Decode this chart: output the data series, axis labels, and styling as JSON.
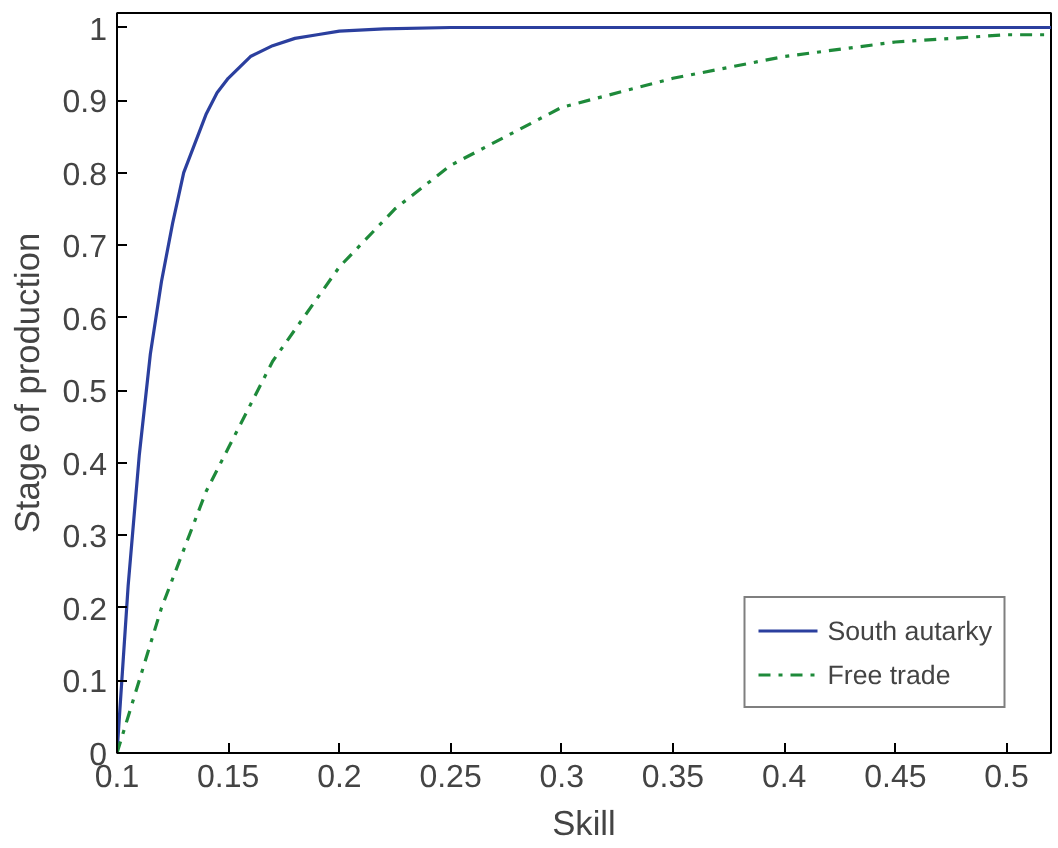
{
  "chart_data": {
    "type": "line",
    "xlabel": "Skill",
    "ylabel": "Stage of production",
    "xlim": [
      0.1,
      0.52
    ],
    "ylim": [
      0,
      1.02
    ],
    "xticks": [
      0.1,
      0.15,
      0.2,
      0.25,
      0.3,
      0.35,
      0.4,
      0.45,
      0.5
    ],
    "yticks": [
      0,
      0.1,
      0.2,
      0.3,
      0.4,
      0.5,
      0.6,
      0.7,
      0.8,
      0.9,
      1
    ],
    "grid": false,
    "legend": "bottom right",
    "series": [
      {
        "name": "South autarky",
        "color": "#2b3f9e",
        "line_style": "solid",
        "x": [
          0.1,
          0.105,
          0.11,
          0.115,
          0.12,
          0.125,
          0.13,
          0.135,
          0.14,
          0.145,
          0.15,
          0.16,
          0.17,
          0.18,
          0.19,
          0.2,
          0.22,
          0.25,
          0.3,
          0.4,
          0.52
        ],
        "values": [
          0,
          0.23,
          0.41,
          0.55,
          0.65,
          0.73,
          0.8,
          0.84,
          0.88,
          0.91,
          0.93,
          0.96,
          0.975,
          0.985,
          0.99,
          0.995,
          0.998,
          1,
          1,
          1,
          1
        ]
      },
      {
        "name": "Free trade",
        "color": "#1e8a3a",
        "line_style": "dashdot",
        "x": [
          0.1,
          0.11,
          0.12,
          0.13,
          0.14,
          0.15,
          0.17,
          0.2,
          0.225,
          0.25,
          0.275,
          0.3,
          0.35,
          0.4,
          0.45,
          0.5,
          0.52
        ],
        "values": [
          0,
          0.1,
          0.2,
          0.28,
          0.36,
          0.42,
          0.54,
          0.67,
          0.75,
          0.81,
          0.85,
          0.89,
          0.93,
          0.96,
          0.98,
          0.99,
          0.99
        ]
      }
    ]
  }
}
